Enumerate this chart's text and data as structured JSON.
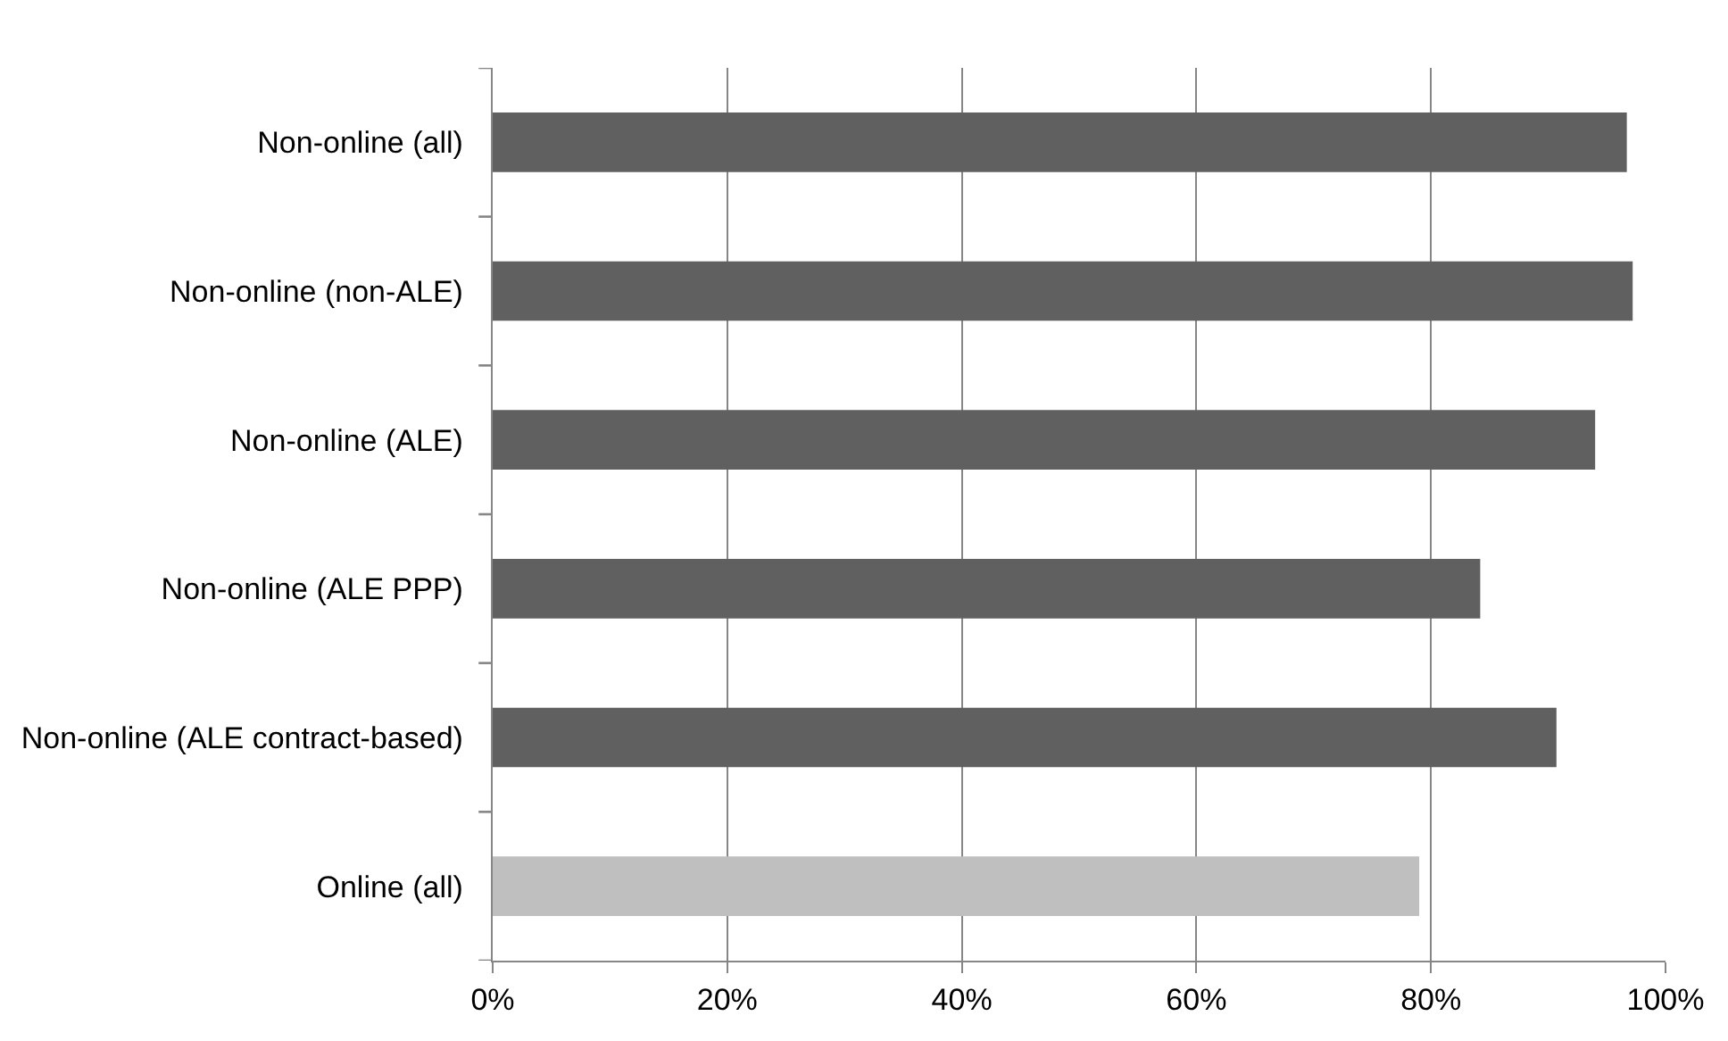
{
  "chart_data": {
    "type": "bar",
    "orientation": "horizontal",
    "categories": [
      "Non-online (all)",
      "Non-online (non-ALE)",
      "Non-online (ALE)",
      "Non-online (ALE PPP)",
      "Non-online (ALE contract-based)",
      "Online (all)"
    ],
    "values": [
      0.967,
      0.972,
      0.94,
      0.842,
      0.907,
      0.79
    ],
    "colors": [
      "#606060",
      "#606060",
      "#606060",
      "#606060",
      "#606060",
      "#bfbfbf"
    ],
    "xlim": [
      0,
      1
    ],
    "xticks": [
      {
        "value": 0,
        "label": "0%"
      },
      {
        "value": 0.2,
        "label": "20%"
      },
      {
        "value": 0.4,
        "label": "40%"
      },
      {
        "value": 0.6,
        "label": "60%"
      },
      {
        "value": 0.8,
        "label": "80%"
      },
      {
        "value": 1,
        "label": "100%"
      }
    ],
    "grid": "x"
  }
}
